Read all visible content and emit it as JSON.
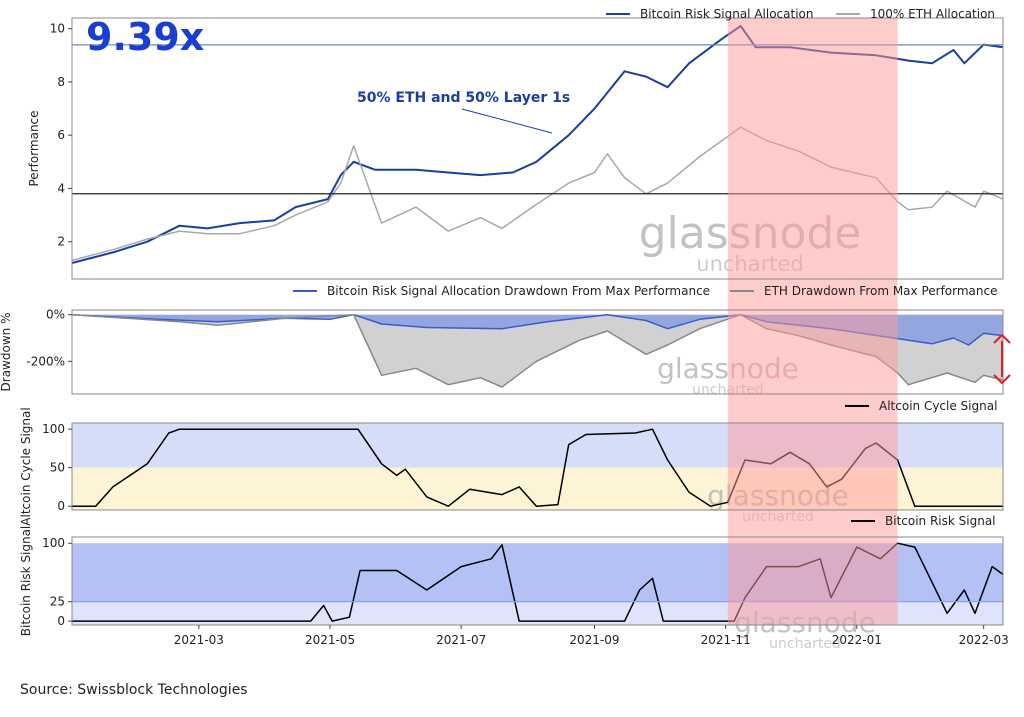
{
  "source": "Source: Swissblock Technologies",
  "watermark": {
    "brand": "glassnode",
    "sub": "uncharted"
  },
  "x_axis": {
    "range": [
      "2021-01-01",
      "2022-03-10"
    ],
    "ticks": [
      "2021-03-01",
      "2021-05-01",
      "2021-07-01",
      "2021-09-01",
      "2021-11-01",
      "2022-01-01",
      "2022-03-01"
    ],
    "tick_labels": [
      "2021-03",
      "2021-05",
      "2021-07",
      "2021-09",
      "2021-11",
      "2022-01",
      "2022-03"
    ]
  },
  "highlight_period": {
    "start": "2021-11-02",
    "end": "2022-01-20",
    "color": "#ff9a9a"
  },
  "chart_data": [
    {
      "type": "line",
      "ylabel": "Performance",
      "ylim": [
        0.6,
        10.4
      ],
      "yticks": [
        2,
        4,
        6,
        8,
        10
      ],
      "headline": "9.39x",
      "annotation": "50% ETH and 50% Layer 1s",
      "legend": {
        "placement": "top-right",
        "entries": [
          "Bitcoin Risk Signal Allocation",
          "100% ETH Allocation"
        ]
      },
      "hlines": [
        {
          "y": 9.39,
          "color": "#6a8ab8"
        },
        {
          "y": 3.8,
          "color": "#222222"
        }
      ],
      "series": [
        {
          "name": "Bitcoin Risk Signal Allocation",
          "color": "#1a3fa0",
          "points": [
            [
              "2021-01-01",
              1.2
            ],
            [
              "2021-01-20",
              1.6
            ],
            [
              "2021-02-05",
              2.0
            ],
            [
              "2021-02-20",
              2.6
            ],
            [
              "2021-03-05",
              2.5
            ],
            [
              "2021-03-20",
              2.7
            ],
            [
              "2021-04-05",
              2.8
            ],
            [
              "2021-04-15",
              3.3
            ],
            [
              "2021-04-30",
              3.6
            ],
            [
              "2021-05-06",
              4.5
            ],
            [
              "2021-05-12",
              5.0
            ],
            [
              "2021-05-22",
              4.7
            ],
            [
              "2021-06-10",
              4.7
            ],
            [
              "2021-06-25",
              4.6
            ],
            [
              "2021-07-10",
              4.5
            ],
            [
              "2021-07-25",
              4.6
            ],
            [
              "2021-08-05",
              5.0
            ],
            [
              "2021-08-20",
              6.0
            ],
            [
              "2021-09-01",
              7.0
            ],
            [
              "2021-09-07",
              7.6
            ],
            [
              "2021-09-15",
              8.4
            ],
            [
              "2021-09-25",
              8.2
            ],
            [
              "2021-10-05",
              7.8
            ],
            [
              "2021-10-15",
              8.7
            ],
            [
              "2021-10-30",
              9.6
            ],
            [
              "2021-11-08",
              10.1
            ],
            [
              "2021-11-15",
              9.3
            ],
            [
              "2021-12-01",
              9.3
            ],
            [
              "2021-12-20",
              9.1
            ],
            [
              "2022-01-10",
              9.0
            ],
            [
              "2022-01-25",
              8.8
            ],
            [
              "2022-02-05",
              8.7
            ],
            [
              "2022-02-15",
              9.2
            ],
            [
              "2022-02-20",
              8.7
            ],
            [
              "2022-03-01",
              9.4
            ],
            [
              "2022-03-10",
              9.3
            ]
          ]
        },
        {
          "name": "100% ETH Allocation",
          "color": "#a8a8a8",
          "points": [
            [
              "2021-01-01",
              1.3
            ],
            [
              "2021-01-20",
              1.7
            ],
            [
              "2021-02-05",
              2.1
            ],
            [
              "2021-02-20",
              2.4
            ],
            [
              "2021-03-05",
              2.3
            ],
            [
              "2021-03-20",
              2.3
            ],
            [
              "2021-04-05",
              2.6
            ],
            [
              "2021-04-15",
              3.0
            ],
            [
              "2021-04-30",
              3.5
            ],
            [
              "2021-05-06",
              4.2
            ],
            [
              "2021-05-12",
              5.6
            ],
            [
              "2021-05-20",
              3.8
            ],
            [
              "2021-05-25",
              2.7
            ],
            [
              "2021-06-10",
              3.3
            ],
            [
              "2021-06-25",
              2.4
            ],
            [
              "2021-07-10",
              2.9
            ],
            [
              "2021-07-20",
              2.5
            ],
            [
              "2021-08-05",
              3.4
            ],
            [
              "2021-08-20",
              4.2
            ],
            [
              "2021-09-01",
              4.6
            ],
            [
              "2021-09-07",
              5.3
            ],
            [
              "2021-09-15",
              4.4
            ],
            [
              "2021-09-25",
              3.8
            ],
            [
              "2021-10-05",
              4.2
            ],
            [
              "2021-10-20",
              5.2
            ],
            [
              "2021-11-08",
              6.3
            ],
            [
              "2021-11-20",
              5.8
            ],
            [
              "2021-12-05",
              5.4
            ],
            [
              "2021-12-20",
              4.8
            ],
            [
              "2022-01-10",
              4.4
            ],
            [
              "2022-01-20",
              3.5
            ],
            [
              "2022-01-25",
              3.2
            ],
            [
              "2022-02-05",
              3.3
            ],
            [
              "2022-02-12",
              3.9
            ],
            [
              "2022-02-25",
              3.3
            ],
            [
              "2022-03-01",
              3.9
            ],
            [
              "2022-03-10",
              3.6
            ]
          ]
        }
      ]
    },
    {
      "type": "area",
      "ylabel": "Drawdown %",
      "ylim": [
        -340,
        20
      ],
      "yticks": [
        0,
        -200
      ],
      "ytick_labels": [
        "0%",
        "-200%"
      ],
      "legend": {
        "placement": "top-right",
        "entries": [
          "Bitcoin Risk Signal Allocation Drawdown From Max Performance",
          "ETH Drawdown From Max Performance"
        ]
      },
      "series": [
        {
          "name": "Bitcoin Risk Signal Allocation Drawdown From Max Performance",
          "color": "#3a5bd0",
          "fill": "#8a9fe0",
          "points": [
            [
              "2021-01-01",
              0
            ],
            [
              "2021-02-10",
              -20
            ],
            [
              "2021-03-10",
              -30
            ],
            [
              "2021-04-10",
              -15
            ],
            [
              "2021-05-01",
              -20
            ],
            [
              "2021-05-12",
              0
            ],
            [
              "2021-05-25",
              -40
            ],
            [
              "2021-06-15",
              -55
            ],
            [
              "2021-07-20",
              -60
            ],
            [
              "2021-08-10",
              -30
            ],
            [
              "2021-09-07",
              0
            ],
            [
              "2021-09-25",
              -25
            ],
            [
              "2021-10-05",
              -60
            ],
            [
              "2021-10-20",
              -20
            ],
            [
              "2021-11-08",
              0
            ],
            [
              "2021-11-20",
              -30
            ],
            [
              "2021-12-20",
              -60
            ],
            [
              "2022-01-25",
              -110
            ],
            [
              "2022-02-05",
              -125
            ],
            [
              "2022-02-15",
              -100
            ],
            [
              "2022-02-22",
              -130
            ],
            [
              "2022-03-01",
              -80
            ],
            [
              "2022-03-10",
              -90
            ]
          ]
        },
        {
          "name": "ETH Drawdown From Max Performance",
          "color": "#888888",
          "fill": "#cfcfcf",
          "points": [
            [
              "2021-01-01",
              0
            ],
            [
              "2021-02-20",
              -30
            ],
            [
              "2021-03-10",
              -45
            ],
            [
              "2021-04-10",
              -15
            ],
            [
              "2021-05-12",
              0
            ],
            [
              "2021-05-20",
              -160
            ],
            [
              "2021-05-25",
              -260
            ],
            [
              "2021-06-10",
              -230
            ],
            [
              "2021-06-25",
              -300
            ],
            [
              "2021-07-10",
              -270
            ],
            [
              "2021-07-20",
              -310
            ],
            [
              "2021-08-05",
              -200
            ],
            [
              "2021-08-25",
              -110
            ],
            [
              "2021-09-07",
              -70
            ],
            [
              "2021-09-25",
              -170
            ],
            [
              "2021-10-05",
              -130
            ],
            [
              "2021-10-20",
              -60
            ],
            [
              "2021-11-08",
              0
            ],
            [
              "2021-11-20",
              -60
            ],
            [
              "2021-12-05",
              -90
            ],
            [
              "2021-12-20",
              -130
            ],
            [
              "2022-01-10",
              -180
            ],
            [
              "2022-01-20",
              -250
            ],
            [
              "2022-01-25",
              -300
            ],
            [
              "2022-02-12",
              -250
            ],
            [
              "2022-02-25",
              -290
            ],
            [
              "2022-03-01",
              -260
            ],
            [
              "2022-03-10",
              -280
            ]
          ]
        }
      ]
    },
    {
      "type": "line",
      "ylabel": "Altcoin Cycle Signal",
      "ylim": [
        -5,
        108
      ],
      "yticks": [
        0,
        50,
        100
      ],
      "bands": [
        {
          "from": 50,
          "to": 108,
          "color": "#d6ddf8"
        },
        {
          "from": -5,
          "to": 50,
          "color": "#fdf4d6"
        }
      ],
      "legend": {
        "placement": "top-right",
        "entries": [
          "Altcoin Cycle Signal"
        ]
      },
      "series": [
        {
          "name": "Altcoin Cycle Signal",
          "color": "#000000",
          "points": [
            [
              "2021-01-01",
              0
            ],
            [
              "2021-01-12",
              0
            ],
            [
              "2021-01-20",
              25
            ],
            [
              "2021-02-05",
              55
            ],
            [
              "2021-02-15",
              95
            ],
            [
              "2021-02-20",
              100
            ],
            [
              "2021-04-20",
              100
            ],
            [
              "2021-05-14",
              100
            ],
            [
              "2021-05-25",
              55
            ],
            [
              "2021-06-01",
              40
            ],
            [
              "2021-06-05",
              48
            ],
            [
              "2021-06-15",
              12
            ],
            [
              "2021-06-25",
              0
            ],
            [
              "2021-07-05",
              22
            ],
            [
              "2021-07-20",
              15
            ],
            [
              "2021-07-28",
              25
            ],
            [
              "2021-08-05",
              0
            ],
            [
              "2021-08-15",
              2
            ],
            [
              "2021-08-20",
              80
            ],
            [
              "2021-08-28",
              93
            ],
            [
              "2021-09-20",
              95
            ],
            [
              "2021-09-28",
              100
            ],
            [
              "2021-10-05",
              60
            ],
            [
              "2021-10-15",
              18
            ],
            [
              "2021-10-25",
              0
            ],
            [
              "2021-11-02",
              5
            ],
            [
              "2021-11-10",
              60
            ],
            [
              "2021-11-22",
              55
            ],
            [
              "2021-12-01",
              70
            ],
            [
              "2021-12-10",
              55
            ],
            [
              "2021-12-18",
              25
            ],
            [
              "2021-12-25",
              35
            ],
            [
              "2022-01-05",
              75
            ],
            [
              "2022-01-10",
              82
            ],
            [
              "2022-01-20",
              60
            ],
            [
              "2022-01-28",
              0
            ],
            [
              "2022-03-10",
              0
            ]
          ]
        }
      ]
    },
    {
      "type": "line",
      "ylabel": "Bitcoin Risk Signal",
      "ylim": [
        -5,
        108
      ],
      "yticks": [
        0,
        25,
        100
      ],
      "bands": [
        {
          "from": 25,
          "to": 100,
          "color": "#b3c1f5"
        },
        {
          "from": -5,
          "to": 25,
          "color": "#dde4fc"
        }
      ],
      "hlines": [
        {
          "y": 25,
          "color": "#8aa0e8"
        }
      ],
      "legend": {
        "placement": "top-right",
        "entries": [
          "Bitcoin Risk Signal"
        ]
      },
      "series": [
        {
          "name": "Bitcoin Risk Signal",
          "color": "#000000",
          "points": [
            [
              "2021-01-01",
              0
            ],
            [
              "2021-04-22",
              0
            ],
            [
              "2021-04-28",
              20
            ],
            [
              "2021-05-02",
              0
            ],
            [
              "2021-05-10",
              5
            ],
            [
              "2021-05-15",
              65
            ],
            [
              "2021-06-01",
              65
            ],
            [
              "2021-06-15",
              40
            ],
            [
              "2021-07-01",
              70
            ],
            [
              "2021-07-15",
              80
            ],
            [
              "2021-07-20",
              98
            ],
            [
              "2021-07-28",
              0
            ],
            [
              "2021-09-15",
              0
            ],
            [
              "2021-09-22",
              40
            ],
            [
              "2021-09-28",
              55
            ],
            [
              "2021-10-03",
              0
            ],
            [
              "2021-11-05",
              0
            ],
            [
              "2021-11-10",
              30
            ],
            [
              "2021-11-20",
              70
            ],
            [
              "2021-12-05",
              70
            ],
            [
              "2021-12-15",
              80
            ],
            [
              "2021-12-20",
              30
            ],
            [
              "2022-01-01",
              95
            ],
            [
              "2022-01-12",
              80
            ],
            [
              "2022-01-20",
              100
            ],
            [
              "2022-01-28",
              95
            ],
            [
              "2022-02-05",
              50
            ],
            [
              "2022-02-12",
              10
            ],
            [
              "2022-02-20",
              40
            ],
            [
              "2022-02-25",
              10
            ],
            [
              "2022-03-05",
              70
            ],
            [
              "2022-03-10",
              60
            ]
          ]
        }
      ]
    }
  ]
}
